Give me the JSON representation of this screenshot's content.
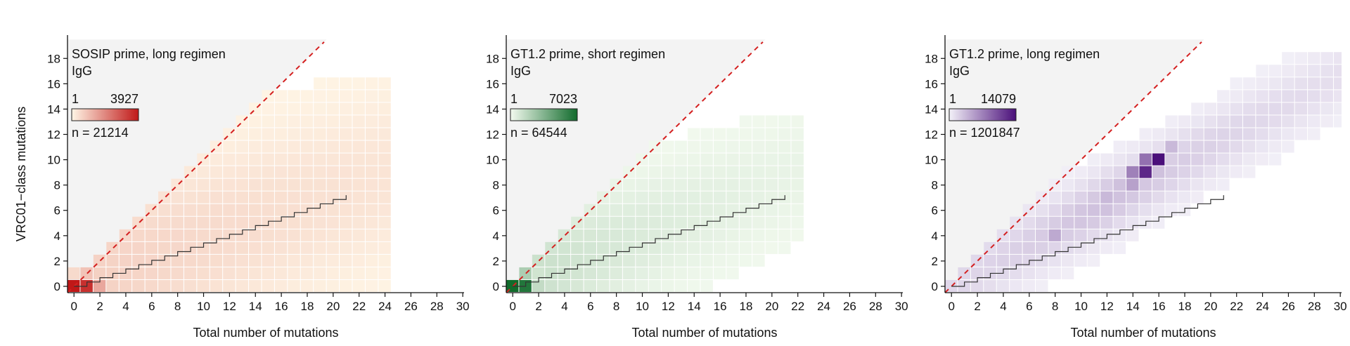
{
  "figure": {
    "ylabel": "VRC01−class mutations"
  },
  "chart_data": [
    {
      "type": "heatmap",
      "panel_title": "SOSIP prime, long regimen",
      "isotype": "IgG",
      "color_min_label": "1",
      "color_max_label": "3927",
      "n_label": "n = 21214",
      "color_low": "#fff6e6",
      "color_high": "#c01818",
      "xlabel": "Total number of mutations",
      "xlim": [
        0,
        30
      ],
      "ylim": [
        0,
        18
      ],
      "xticks": [
        "0",
        "2",
        "4",
        "6",
        "8",
        "10",
        "12",
        "14",
        "16",
        "18",
        "20",
        "22",
        "24",
        "26",
        "28",
        "30"
      ],
      "yticks": [
        "0",
        "2",
        "4",
        "6",
        "8",
        "10",
        "12",
        "14",
        "16",
        "18"
      ],
      "diagonal": "y = x (dashed red)",
      "staircase_end_x": 21,
      "staircase_end_y": 7.2,
      "max_x_extent": 24,
      "strong_cells": [
        {
          "x": 0,
          "y": 0,
          "value": 3927
        },
        {
          "x": 1,
          "y": 0,
          "value": 3500
        },
        {
          "x": 2,
          "y": 0,
          "value": 1400
        },
        {
          "x": 1,
          "y": 1,
          "value": 900
        },
        {
          "x": 0,
          "y": 1,
          "value": 500
        }
      ]
    },
    {
      "type": "heatmap",
      "panel_title": "GT1.2 prime, short regimen",
      "isotype": "IgG",
      "color_min_label": "1",
      "color_max_label": "7023",
      "n_label": "n = 64544",
      "color_low": "#f3faef",
      "color_high": "#116b2c",
      "xlabel": "Total number of mutations",
      "xlim": [
        0,
        30
      ],
      "ylim": [
        0,
        18
      ],
      "xticks": [
        "0",
        "2",
        "4",
        "6",
        "8",
        "10",
        "12",
        "14",
        "16",
        "18",
        "20",
        "22",
        "24",
        "26",
        "28",
        "30"
      ],
      "yticks": [
        "0",
        "2",
        "4",
        "6",
        "8",
        "10",
        "12",
        "14",
        "16",
        "18"
      ],
      "diagonal": "y = x (dashed red)",
      "staircase_end_x": 21,
      "staircase_end_y": 7.2,
      "max_x_extent": 22,
      "strong_cells": [
        {
          "x": 0,
          "y": 0,
          "value": 7023
        },
        {
          "x": 1,
          "y": 0,
          "value": 6500
        },
        {
          "x": 2,
          "y": 0,
          "value": 1500
        },
        {
          "x": 1,
          "y": 1,
          "value": 2200
        },
        {
          "x": 2,
          "y": 1,
          "value": 1100
        }
      ]
    },
    {
      "type": "heatmap",
      "panel_title": "GT1.2 prime, long regimen",
      "isotype": "IgG",
      "color_min_label": "1",
      "color_max_label": "14079",
      "n_label": "n = 1201847",
      "color_low": "#f3f1f8",
      "color_high": "#4a0f7a",
      "xlabel": "Total number of mutations",
      "xlim": [
        0,
        30
      ],
      "ylim": [
        0,
        18
      ],
      "xticks": [
        "0",
        "2",
        "4",
        "6",
        "8",
        "10",
        "12",
        "14",
        "16",
        "18",
        "20",
        "22",
        "24",
        "26",
        "28",
        "30"
      ],
      "yticks": [
        "0",
        "2",
        "4",
        "6",
        "8",
        "10",
        "12",
        "14",
        "16",
        "18"
      ],
      "diagonal": "y = x (dashed red)",
      "staircase_end_x": 21,
      "staircase_end_y": 7.2,
      "max_x_extent": 30,
      "strong_cells": [
        {
          "x": 16,
          "y": 10,
          "value": 14079
        },
        {
          "x": 15,
          "y": 9,
          "value": 12500
        },
        {
          "x": 15,
          "y": 10,
          "value": 8000
        },
        {
          "x": 14,
          "y": 9,
          "value": 7000
        },
        {
          "x": 14,
          "y": 8,
          "value": 5000
        },
        {
          "x": 8,
          "y": 4,
          "value": 4500
        },
        {
          "x": 17,
          "y": 11,
          "value": 3500
        },
        {
          "x": 12,
          "y": 7,
          "value": 3500
        },
        {
          "x": 13,
          "y": 8,
          "value": 3000
        },
        {
          "x": 16,
          "y": 9,
          "value": 3000
        }
      ]
    }
  ]
}
